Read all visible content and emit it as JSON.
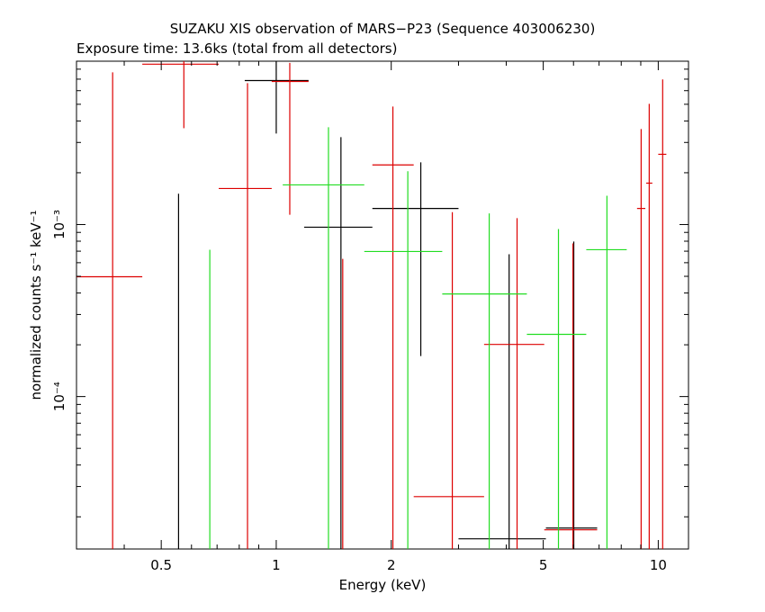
{
  "chart_data": {
    "type": "scatter",
    "title": "SUZAKU XIS observation of MARS−P23 (Sequence 403006230)",
    "subtitle": "Exposure time: 13.6ks (total from all detectors)",
    "x_label": "Energy (keV)",
    "y_label": "normalized counts s⁻¹ keV⁻¹",
    "xlog": true,
    "ylog": true,
    "xlim": [
      0.3,
      12
    ],
    "ylim": [
      1.3e-05,
      0.0089
    ],
    "xticks": [
      0.5,
      1,
      2,
      5,
      10
    ],
    "xminorticks": [
      0.3,
      0.4,
      0.6,
      0.7,
      0.8,
      0.9,
      3,
      4,
      6,
      7,
      8,
      9
    ],
    "yticks": [
      {
        "value": 0.0001,
        "label": "10⁻⁴"
      },
      {
        "value": 0.001,
        "label": "10⁻³"
      }
    ],
    "yminorticks": [
      2e-05,
      3e-05,
      4e-05,
      5e-05,
      6e-05,
      7e-05,
      8e-05,
      9e-05,
      0.0002,
      0.0003,
      0.0004,
      0.0005,
      0.0006,
      0.0007,
      0.0008,
      0.0009,
      0.002,
      0.003,
      0.004,
      0.005,
      0.006,
      0.007,
      0.008
    ],
    "series": [
      {
        "color": "#000000",
        "x": [
          0.555,
          1.0,
          1.477,
          2.39,
          4.07,
          6.01
        ],
        "x_lo": [
          0.53,
          0.827,
          1.183,
          1.785,
          3.0,
          5.08
        ],
        "x_hi": [
          0.58,
          1.215,
          1.785,
          3.0,
          5.08,
          6.92
        ],
        "values": [
          1e-05,
          0.00687,
          0.000965,
          0.00124,
          1.49e-05,
          1.72e-05
        ],
        "y_lo": [
          1e-05,
          0.00338,
          1e-05,
          0.000172,
          1e-05,
          1e-05
        ],
        "y_hi": [
          0.00151,
          0.012,
          0.00322,
          0.0023,
          0.000672,
          0.000796
        ]
      },
      {
        "color": "#dd0000",
        "x": [
          0.373,
          0.573,
          0.841,
          1.085,
          1.493,
          2.02,
          2.89,
          4.27,
          5.98,
          9.02,
          9.47,
          10.27
        ],
        "x_lo": [
          0.3,
          0.446,
          0.707,
          0.973,
          1.43,
          1.785,
          2.29,
          3.5,
          5.03,
          8.8,
          9.3,
          10.0
        ],
        "x_hi": [
          0.446,
          0.707,
          0.973,
          1.215,
          1.56,
          2.29,
          3.5,
          5.03,
          6.92,
          9.25,
          9.65,
          10.5
        ],
        "values": [
          0.000497,
          0.00855,
          0.00162,
          0.00679,
          1e-05,
          0.00222,
          2.62e-05,
          0.000201,
          1.68e-05,
          0.00124,
          0.00174,
          0.00256
        ],
        "y_lo": [
          1e-05,
          0.00363,
          1e-05,
          0.00114,
          1e-05,
          1e-05,
          1e-05,
          1e-05,
          1e-05,
          1e-05,
          1e-05,
          1e-05
        ],
        "y_hi": [
          0.00767,
          0.012,
          0.00664,
          0.0087,
          0.000632,
          0.00485,
          0.00118,
          0.00109,
          0.000776,
          0.00359,
          0.00503,
          0.00697
        ]
      },
      {
        "color": "#22dd22",
        "x": [
          0.67,
          1.37,
          2.21,
          3.61,
          5.48,
          7.34
        ],
        "x_lo": [
          0.64,
          1.04,
          1.7,
          2.72,
          4.53,
          6.48
        ],
        "x_hi": [
          0.7,
          1.7,
          2.72,
          4.53,
          6.48,
          8.27
        ],
        "values": [
          1e-05,
          0.0017,
          0.000697,
          0.000395,
          0.00023,
          0.000714
        ],
        "y_lo": [
          1e-05,
          1e-05,
          1e-05,
          1e-05,
          1e-05,
          1e-05
        ],
        "y_hi": [
          0.000714,
          0.00368,
          0.00204,
          0.00116,
          0.000942,
          0.00147
        ]
      }
    ]
  }
}
